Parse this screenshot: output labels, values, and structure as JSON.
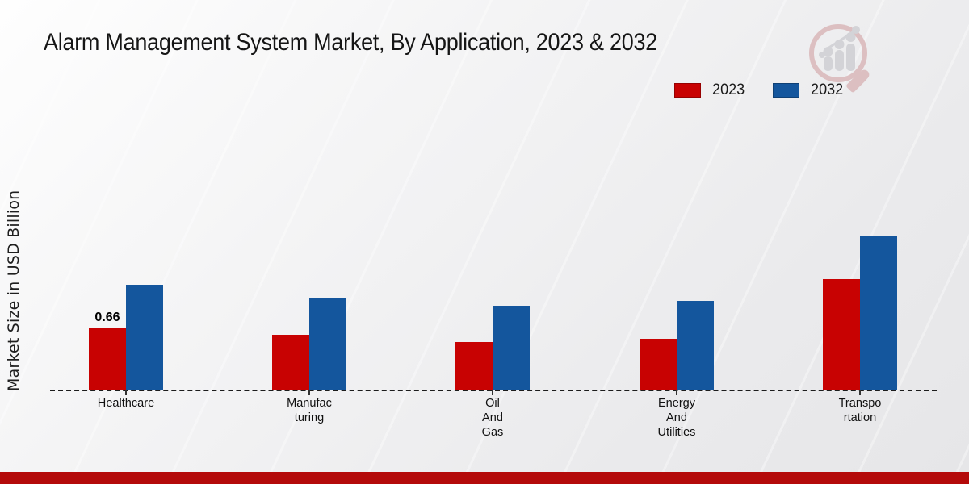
{
  "title": "Alarm Management System Market, By Application, 2023 & 2032",
  "ylabel": "Market Size in USD Billion",
  "legend": [
    {
      "label": "2023",
      "color": "#c80202"
    },
    {
      "label": "2032",
      "color": "#14569d"
    }
  ],
  "colors": {
    "bar_2023": "#c80202",
    "bar_2032": "#14569d",
    "footer_accent": "#b40a0a",
    "axis": "#1c1c1c",
    "watermark_ring": "#dcbdbf",
    "watermark_gray": "#d2d2d6"
  },
  "watermark_icon": "magnifying-glass-bar-chart-logo",
  "chart_data": {
    "type": "bar",
    "title": "Alarm Management System Market, By Application, 2023 & 2032",
    "xlabel": "",
    "ylabel": "Market Size in USD Billion",
    "categories": [
      "Healthcare",
      "Manufacturing",
      "Oil And Gas",
      "Energy And Utilities",
      "Transportation"
    ],
    "category_label_lines": [
      [
        "Healthcare"
      ],
      [
        "Manufac",
        "turing"
      ],
      [
        "Oil",
        "And",
        "Gas"
      ],
      [
        "Energy",
        "And",
        "Utilities"
      ],
      [
        "Transpo",
        "rtation"
      ]
    ],
    "series": [
      {
        "name": "2023",
        "color": "#c80202",
        "values": [
          0.66,
          0.59,
          0.51,
          0.55,
          1.18
        ]
      },
      {
        "name": "2032",
        "color": "#14569d",
        "values": [
          1.12,
          0.98,
          0.9,
          0.95,
          1.64
        ]
      }
    ],
    "data_labels": [
      {
        "series": "2023",
        "category": "Healthcare",
        "text": "0.66"
      }
    ],
    "ylim": [
      0,
      2
    ],
    "grid": false,
    "y_axis_ticks_visible": false,
    "legend_position": "top-right",
    "baseline_style": "dashed"
  }
}
